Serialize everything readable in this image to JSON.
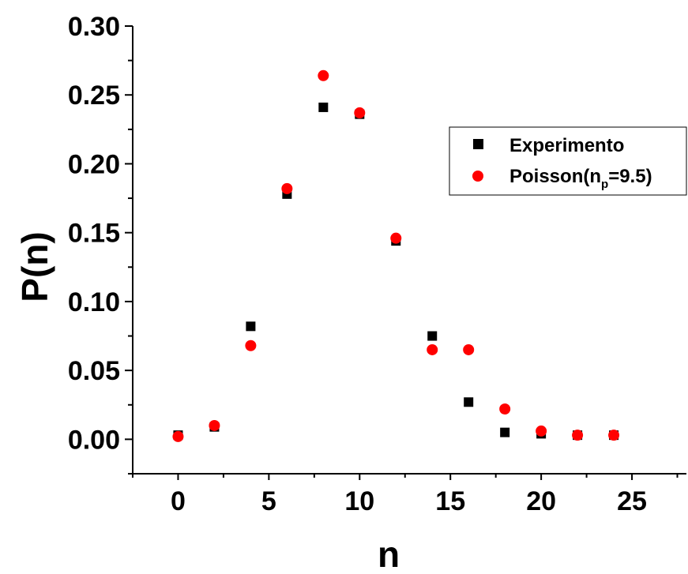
{
  "chart_data": {
    "type": "scatter",
    "xlabel": "n",
    "ylabel": "P(n)",
    "xlim": [
      -2.5,
      28
    ],
    "ylim": [
      -0.025,
      0.3
    ],
    "x_ticks": [
      "0",
      "5",
      "10",
      "15",
      "20",
      "25"
    ],
    "y_ticks": [
      "0.00",
      "0.05",
      "0.10",
      "0.15",
      "0.20",
      "0.25",
      "0.30"
    ],
    "grid": false,
    "legend_position": "top-right",
    "series": [
      {
        "name": "Experimento",
        "marker": "square",
        "color": "#000000",
        "x": [
          0,
          2,
          4,
          6,
          8,
          10,
          12,
          14,
          16,
          18,
          20,
          22,
          24
        ],
        "y": [
          0.003,
          0.009,
          0.082,
          0.178,
          0.241,
          0.236,
          0.144,
          0.075,
          0.027,
          0.005,
          0.004,
          0.003,
          0.003
        ]
      },
      {
        "name": "Poisson(n",
        "name_sub": "p",
        "name_suffix": "=9.5)",
        "marker": "circle",
        "color": "#ff0000",
        "x": [
          0,
          2,
          4,
          6,
          8,
          10,
          12,
          14,
          16,
          18,
          20,
          22,
          24
        ],
        "y": [
          0.002,
          0.01,
          0.068,
          0.182,
          0.264,
          0.237,
          0.146,
          0.065,
          0.065,
          0.022,
          0.006,
          0.003,
          0.003
        ]
      }
    ]
  }
}
